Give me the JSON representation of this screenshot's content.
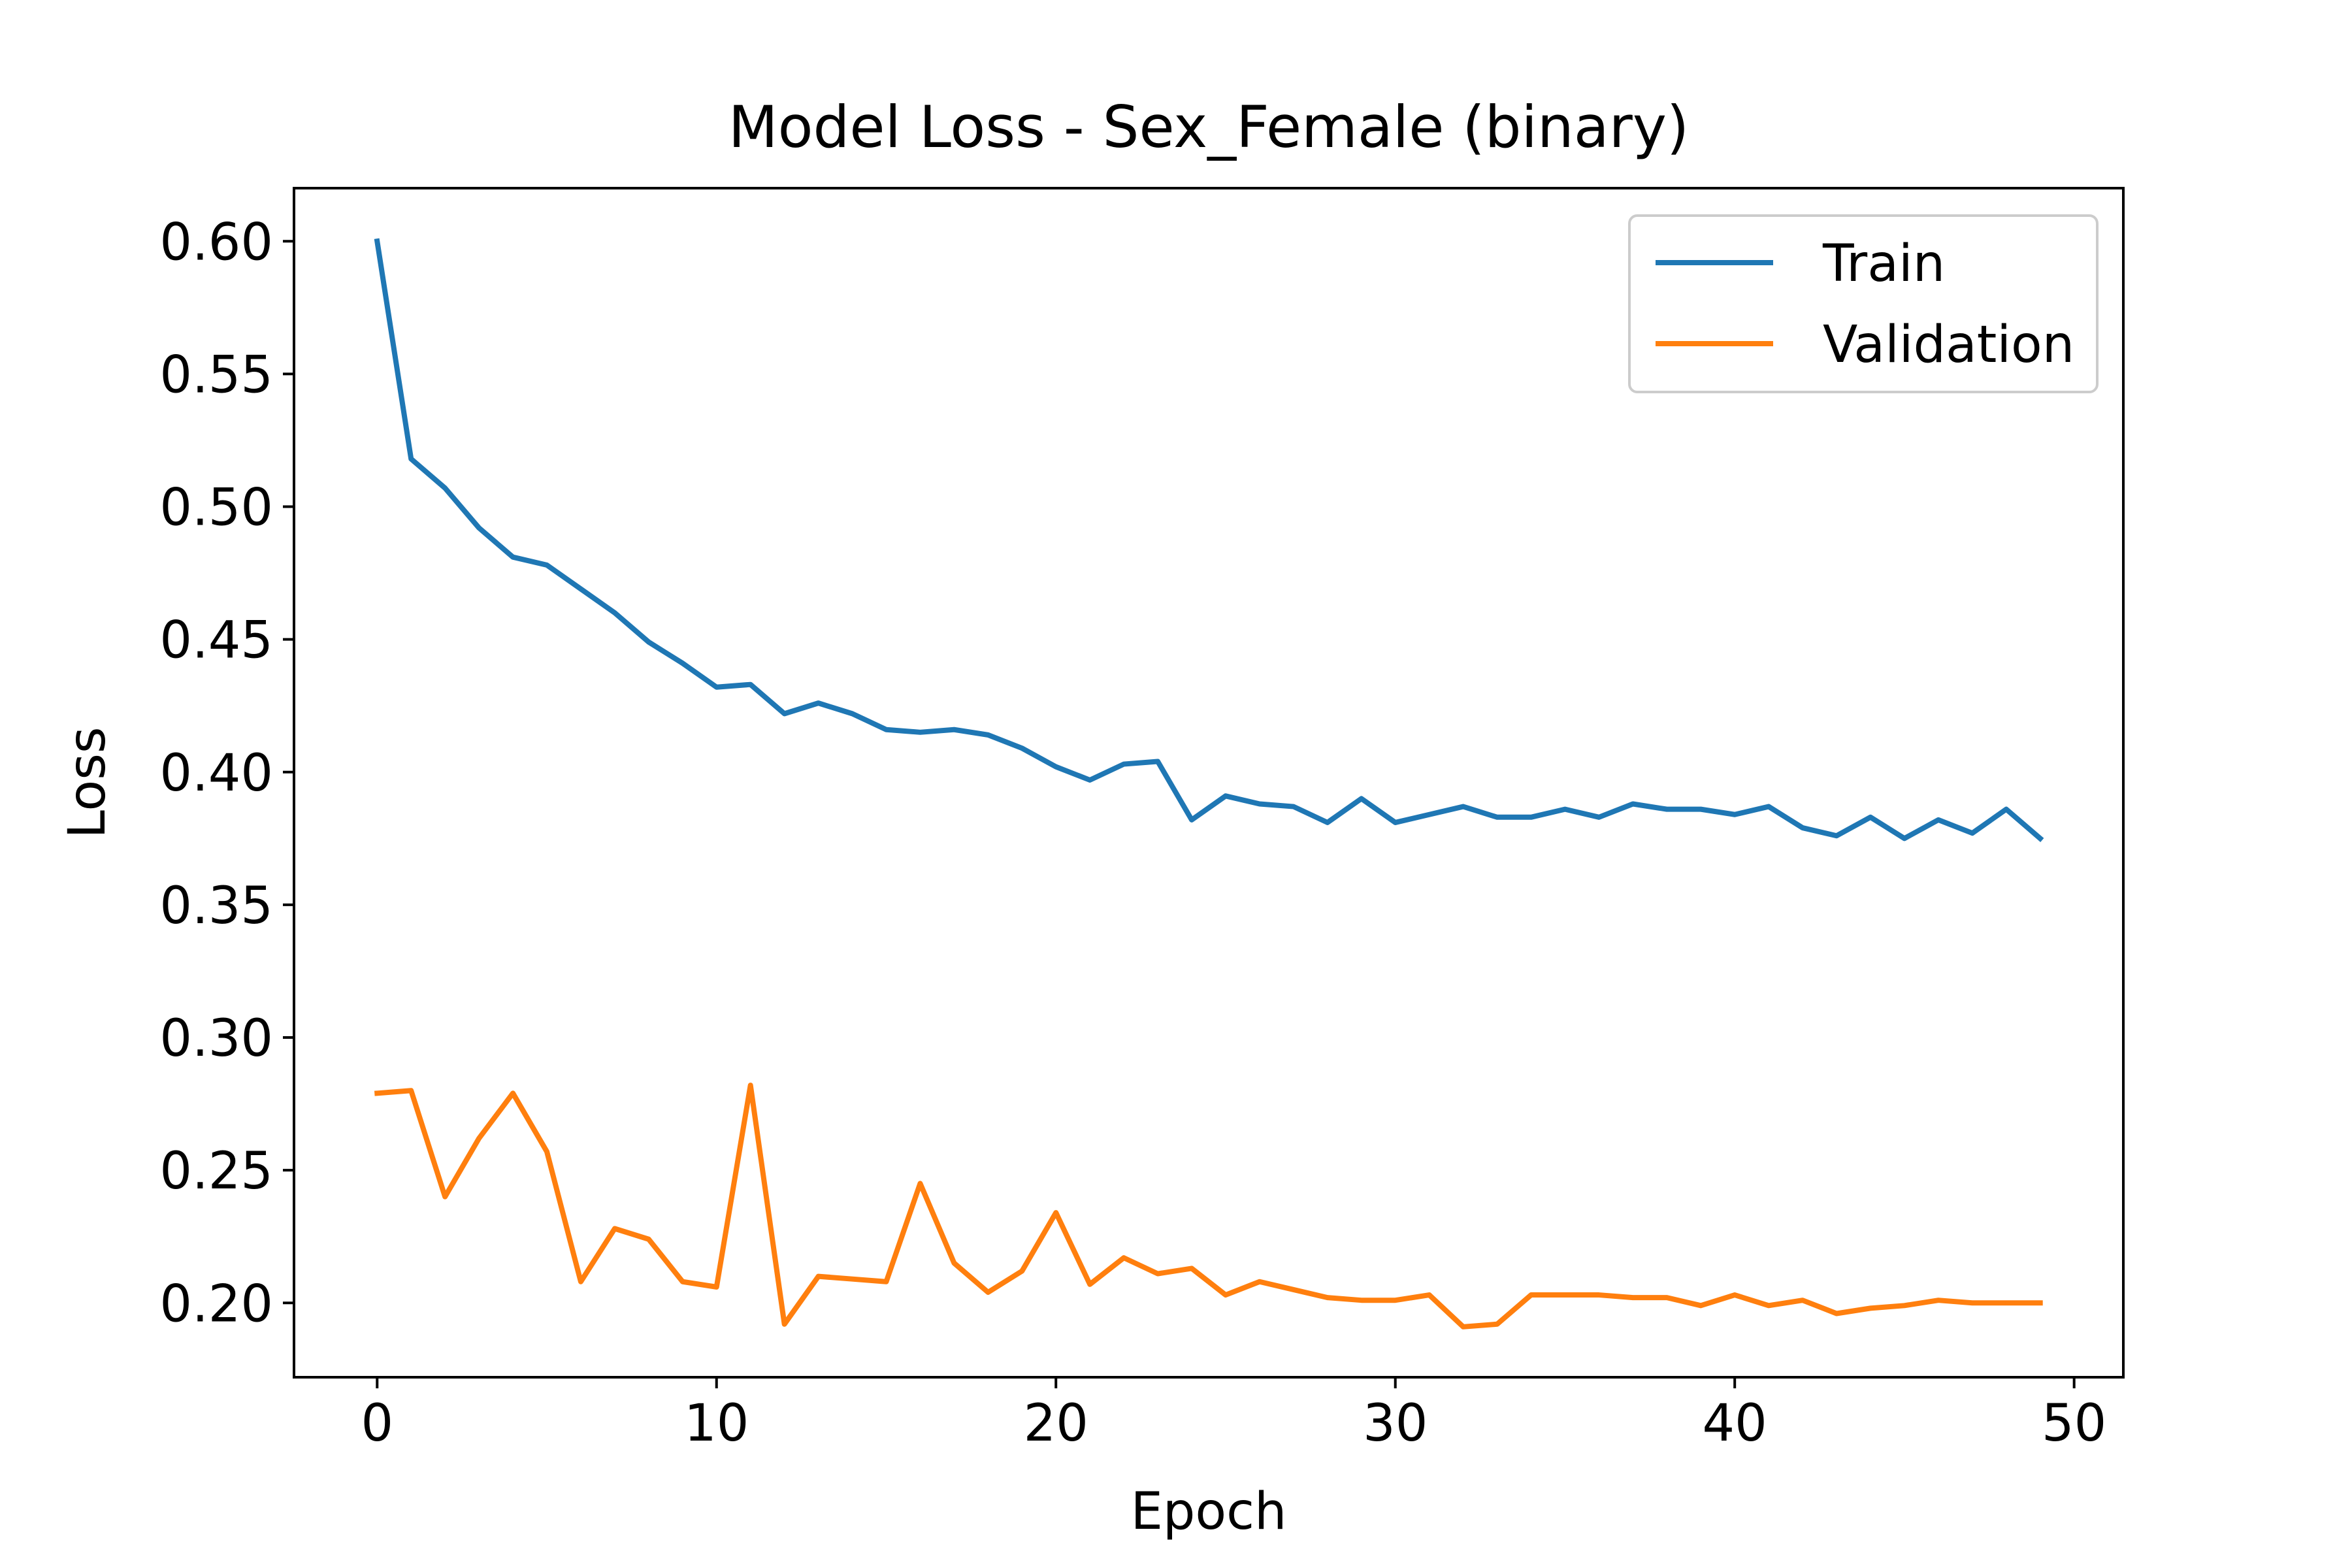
{
  "chart_data": {
    "type": "line",
    "title": "Model Loss - Sex_Female (binary)",
    "xlabel": "Epoch",
    "ylabel": "Loss",
    "xlim": [
      -2.45,
      51.45
    ],
    "ylim": [
      0.172,
      0.62
    ],
    "xticks": [
      0,
      10,
      20,
      30,
      40,
      50
    ],
    "yticks": [
      0.2,
      0.25,
      0.3,
      0.35,
      0.4,
      0.45,
      0.5,
      0.55,
      0.6
    ],
    "grid": false,
    "legend_position": "top-right",
    "x": [
      0,
      1,
      2,
      3,
      4,
      5,
      6,
      7,
      8,
      9,
      10,
      11,
      12,
      13,
      14,
      15,
      16,
      17,
      18,
      19,
      20,
      21,
      22,
      23,
      24,
      25,
      26,
      27,
      28,
      29,
      30,
      31,
      32,
      33,
      34,
      35,
      36,
      37,
      38,
      39,
      40,
      41,
      42,
      43,
      44,
      45,
      46,
      47,
      48,
      49
    ],
    "series": [
      {
        "name": "Train",
        "color": "#1f77b4",
        "values": [
          0.6,
          0.518,
          0.507,
          0.492,
          0.481,
          0.478,
          0.469,
          0.46,
          0.449,
          0.441,
          0.432,
          0.433,
          0.422,
          0.426,
          0.422,
          0.416,
          0.415,
          0.416,
          0.414,
          0.409,
          0.402,
          0.397,
          0.403,
          0.404,
          0.382,
          0.391,
          0.388,
          0.387,
          0.381,
          0.39,
          0.381,
          0.384,
          0.387,
          0.383,
          0.383,
          0.386,
          0.383,
          0.388,
          0.386,
          0.386,
          0.384,
          0.387,
          0.379,
          0.376,
          0.383,
          0.375,
          0.382,
          0.377,
          0.386,
          0.375
        ]
      },
      {
        "name": "Validation",
        "color": "#ff7f0e",
        "values": [
          0.279,
          0.28,
          0.24,
          0.262,
          0.279,
          0.257,
          0.208,
          0.228,
          0.224,
          0.208,
          0.206,
          0.282,
          0.192,
          0.21,
          0.209,
          0.208,
          0.245,
          0.215,
          0.204,
          0.212,
          0.234,
          0.207,
          0.217,
          0.211,
          0.213,
          0.203,
          0.208,
          0.205,
          0.202,
          0.201,
          0.201,
          0.203,
          0.191,
          0.192,
          0.203,
          0.203,
          0.203,
          0.202,
          0.202,
          0.199,
          0.203,
          0.199,
          0.201,
          0.196,
          0.198,
          0.199,
          0.201,
          0.2,
          0.2,
          0.2
        ]
      }
    ]
  }
}
